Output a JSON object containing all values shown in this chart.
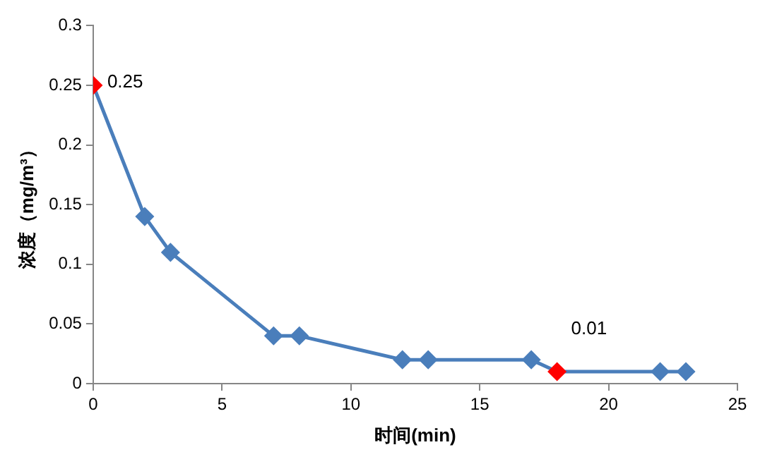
{
  "chart_data": {
    "type": "line",
    "xlabel": "时间(min)",
    "ylabel": "浓度（mg/m³）",
    "x": [
      0,
      2,
      3,
      7,
      8,
      12,
      13,
      17,
      18,
      22,
      23
    ],
    "series": [
      {
        "color": "#4a7ebb",
        "colors": [
          "#ff0000",
          "#4a7ebb",
          "#4a7ebb",
          "#4a7ebb",
          "#4a7ebb",
          "#4a7ebb",
          "#4a7ebb",
          "#4a7ebb",
          "#ff0000",
          "#4a7ebb",
          "#4a7ebb"
        ],
        "values": [
          0.25,
          0.14,
          0.11,
          0.04,
          0.04,
          0.02,
          0.02,
          0.02,
          0.01,
          0.01,
          0.01
        ]
      }
    ],
    "xlim": [
      0,
      25
    ],
    "xticks": [
      0,
      5,
      10,
      15,
      20,
      25
    ],
    "ylim": [
      0,
      0.3
    ],
    "yticks": [
      0,
      0.05,
      0.1,
      0.15,
      0.2,
      0.25,
      0.3
    ],
    "marker": "diamond",
    "line_style": "solid",
    "grid": false,
    "legend": false,
    "annotations": [
      {
        "text": "0.25",
        "x": 0,
        "y": 0.25
      },
      {
        "text": "0.01",
        "x": 18,
        "y": 0.01
      }
    ]
  }
}
